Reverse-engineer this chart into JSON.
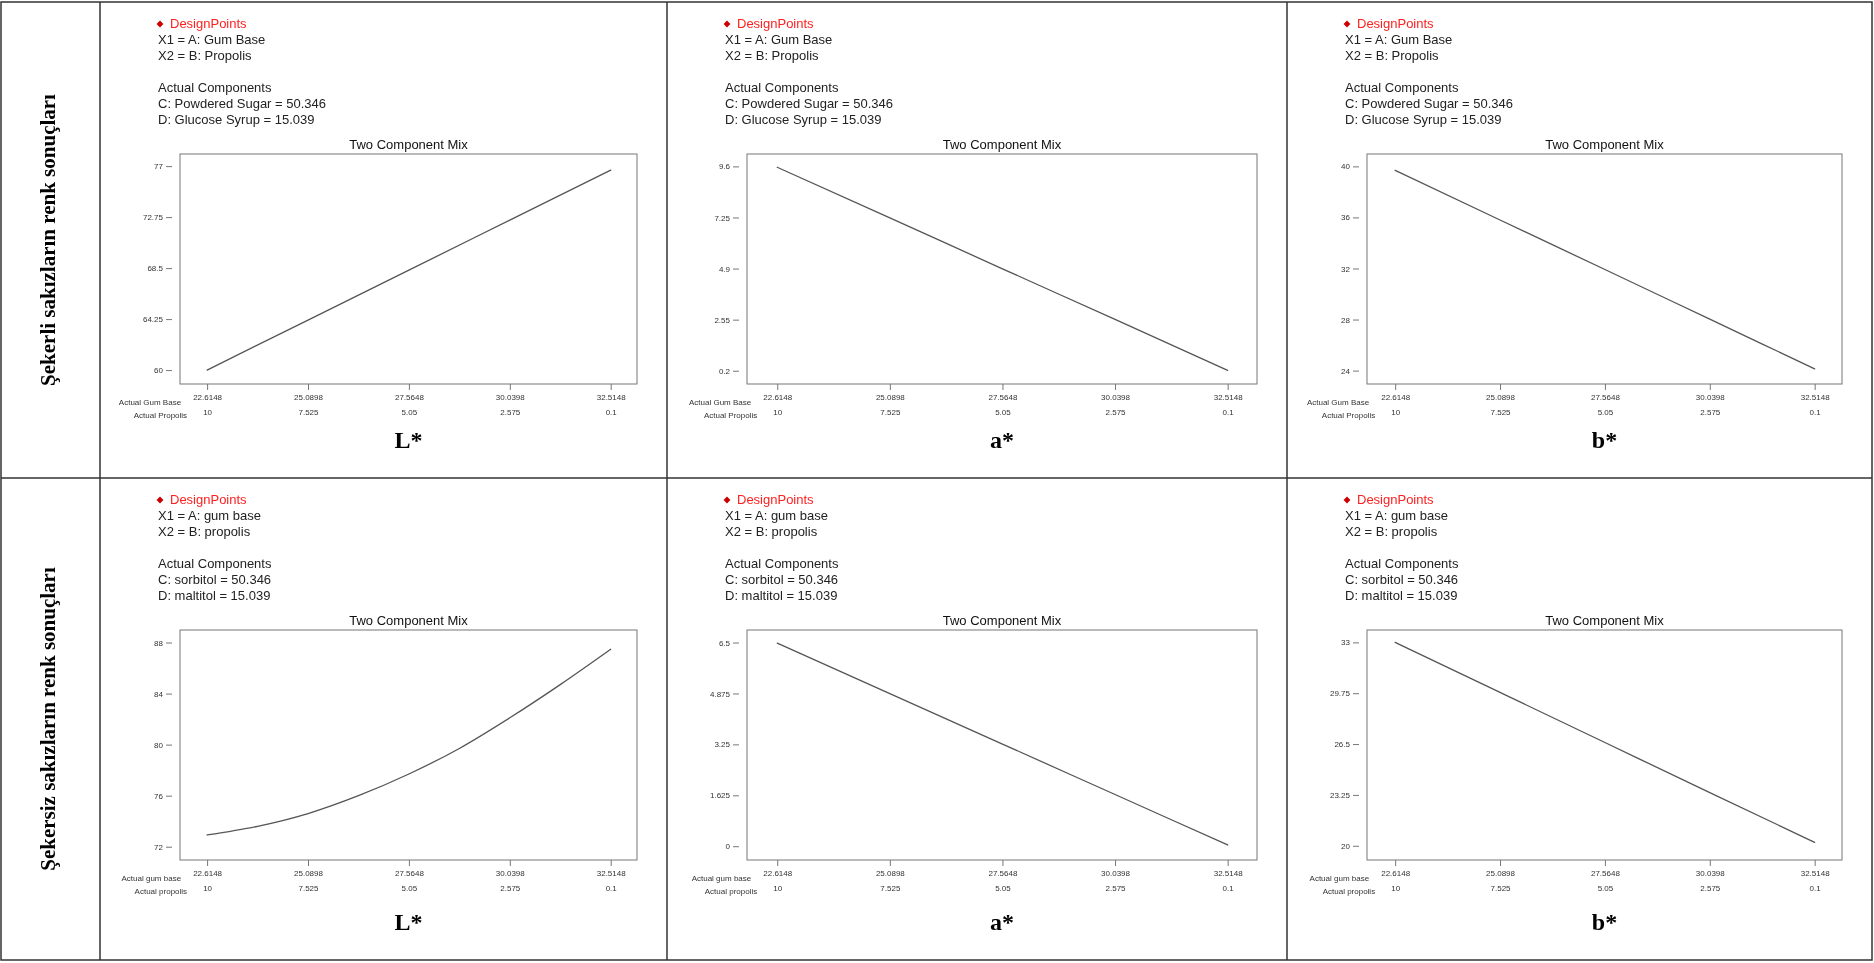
{
  "chart_data": [
    {
      "type": "line",
      "title": "Two Component Mix",
      "subtitle": "L*",
      "xlabel": "Actual Gum Base",
      "x2label": "Actual Propolis",
      "annotations": [
        "DesignPoints",
        "X1 = A: Gum Base",
        "X2 = B: Propolis",
        "Actual Components",
        "C: Powdered Sugar = 50.346",
        "D: Glucose Syrup = 15.039",
        "Şekerli sakızların renk sonuçları"
      ],
      "xlim": [
        21.95,
        33.16
      ],
      "xticks": [
        22.6148,
        25.0898,
        27.5648,
        30.0398,
        32.5148
      ],
      "x2lim": [
        10.6648,
        -0.5452
      ],
      "x2ticks": [
        10,
        7.525,
        5.05,
        2.575,
        0.1
      ],
      "ylim": [
        58.84,
        78.01
      ],
      "yticks": [
        60,
        64.25,
        68.5,
        72.75,
        77
      ],
      "line_style": "solid",
      "series": [
        {
          "color": "#555555",
          "x": [
            22.6148,
            25.0898,
            27.5648,
            30.0398,
            32.5148
          ],
          "values": [
            60.0,
            64.17,
            68.33,
            72.5,
            76.67
          ]
        }
      ]
    },
    {
      "type": "line",
      "title": "Two Component Mix",
      "subtitle": "a*",
      "xlabel": "Actual Gum Base",
      "x2label": "Actual Propolis",
      "annotations": [
        "DesignPoints",
        "X1 = A: Gum Base",
        "X2 = B: Propolis",
        "Actual Components",
        "C: Powdered Sugar = 50.346",
        "D: Glucose Syrup = 15.039"
      ],
      "xlim": [
        21.95,
        33.16
      ],
      "xticks": [
        22.6148,
        25.0898,
        27.5648,
        30.0398,
        32.5148
      ],
      "x2lim": [
        10.6648,
        -0.5452
      ],
      "x2ticks": [
        10,
        7.525,
        5.05,
        2.575,
        0.1
      ],
      "ylim": [
        -0.41,
        10.17
      ],
      "yticks": [
        0.2,
        2.55,
        4.9,
        7.25,
        9.6
      ],
      "line_style": "solid",
      "series": [
        {
          "color": "#555555",
          "x": [
            22.6148,
            25.0898,
            27.5648,
            30.0398,
            32.5148
          ],
          "values": [
            9.56,
            7.23,
            4.89,
            2.56,
            0.22
          ]
        }
      ]
    },
    {
      "type": "line",
      "title": "Two Component Mix",
      "subtitle": "b*",
      "xlabel": "Actual Gum Base",
      "x2label": "Actual Propolis",
      "annotations": [
        "DesignPoints",
        "X1 = A: Gum Base",
        "X2 = B: Propolis",
        "Actual Components",
        "C: Powdered Sugar = 50.346",
        "D: Glucose Syrup = 15.039"
      ],
      "xlim": [
        21.95,
        33.16
      ],
      "xticks": [
        22.6148,
        25.0898,
        27.5648,
        30.0398,
        32.5148
      ],
      "x2lim": [
        10.6648,
        -0.5452
      ],
      "x2ticks": [
        10,
        7.525,
        5.05,
        2.575,
        0.1
      ],
      "ylim": [
        22.95,
        40.97
      ],
      "yticks": [
        24,
        28,
        32,
        36,
        40
      ],
      "line_style": "solid",
      "series": [
        {
          "color": "#555555",
          "x": [
            22.6148,
            25.0898,
            27.5648,
            30.0398,
            32.5148
          ],
          "values": [
            39.69,
            35.8,
            31.92,
            28.03,
            24.14
          ]
        }
      ]
    },
    {
      "type": "line",
      "title": "Two Component Mix",
      "subtitle": "L*",
      "xlabel": "Actual gum base",
      "x2label": "Actual propolis",
      "annotations": [
        "DesignPoints",
        "X1 = A: gum base",
        "X2 = B: propolis",
        "Actual Components",
        "C: sorbitol = 50.346",
        "D: maltitol = 15.039",
        "Şekersiz sakızların renk sonuçları"
      ],
      "xlim": [
        21.95,
        33.16
      ],
      "xticks": [
        22.6148,
        25.0898,
        27.5648,
        30.0398,
        32.5148
      ],
      "x2lim": [
        10.6648,
        -0.5452
      ],
      "x2ticks": [
        10,
        7.525,
        5.05,
        2.575,
        0.1
      ],
      "ylim": [
        70.96,
        88.98
      ],
      "yticks": [
        72,
        76,
        80,
        84,
        88
      ],
      "line_style": "solid",
      "series": [
        {
          "color": "#555555",
          "x": [
            22.6148,
            23.852,
            25.0898,
            26.327,
            27.5648,
            28.802,
            30.0398,
            31.277,
            32.5148
          ],
          "values": [
            72.92,
            73.6,
            74.6,
            76.0,
            77.7,
            79.7,
            82.1,
            84.7,
            87.47
          ]
        }
      ]
    },
    {
      "type": "line",
      "title": "Two Component Mix",
      "subtitle": "a*",
      "xlabel": "Actual gum base",
      "x2label": "Actual propolis",
      "annotations": [
        "DesignPoints",
        "X1 = A: gum base",
        "X2 = B: propolis",
        "Actual Components",
        "C: sorbitol = 50.346",
        "D: maltitol = 15.039"
      ],
      "xlim": [
        21.95,
        33.16
      ],
      "xticks": [
        22.6148,
        25.0898,
        27.5648,
        30.0398,
        32.5148
      ],
      "x2lim": [
        10.6648,
        -0.5452
      ],
      "x2ticks": [
        10,
        7.525,
        5.05,
        2.575,
        0.1
      ],
      "ylim": [
        -0.44,
        6.9
      ],
      "yticks": [
        0,
        1.625,
        3.25,
        4.875,
        6.5
      ],
      "line_style": "solid",
      "series": [
        {
          "color": "#555555",
          "x": [
            22.6148,
            25.0898,
            27.5648,
            30.0398,
            32.5148
          ],
          "values": [
            6.48,
            4.87,
            3.26,
            1.65,
            0.04
          ]
        }
      ]
    },
    {
      "type": "line",
      "title": "Two Component Mix",
      "subtitle": "b*",
      "xlabel": "Actual gum base",
      "x2label": "Actual propolis",
      "annotations": [
        "DesignPoints",
        "X1 = A: gum base",
        "X2 = B: propolis",
        "Actual Components",
        "C: sorbitol = 50.346",
        "D: maltitol = 15.039"
      ],
      "xlim": [
        21.95,
        33.16
      ],
      "xticks": [
        22.6148,
        25.0898,
        27.5648,
        30.0398,
        32.5148
      ],
      "x2lim": [
        10.6648,
        -0.5452
      ],
      "x2ticks": [
        10,
        7.525,
        5.05,
        2.575,
        0.1
      ],
      "ylim": [
        19.09,
        33.79
      ],
      "yticks": [
        20,
        23.25,
        26.5,
        29.75,
        33
      ],
      "line_style": "solid",
      "series": [
        {
          "color": "#555555",
          "x": [
            22.6148,
            25.0898,
            27.5648,
            30.0398,
            32.5148
          ],
          "values": [
            33.0,
            29.8,
            26.6,
            23.4,
            20.22
          ]
        }
      ]
    }
  ]
}
